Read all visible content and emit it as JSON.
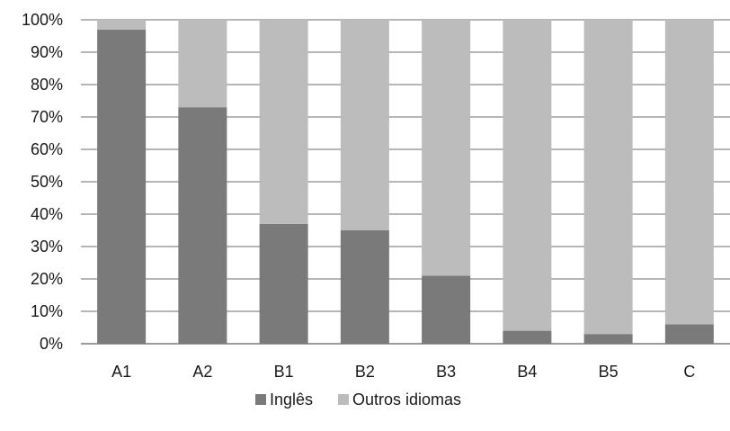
{
  "chart_data": {
    "type": "bar",
    "stacked": true,
    "categories": [
      "A1",
      "A2",
      "B1",
      "B2",
      "B3",
      "B4",
      "B5",
      "C"
    ],
    "series": [
      {
        "name": "Inglês",
        "values": [
          97,
          73,
          37,
          35,
          21,
          4,
          3,
          6
        ],
        "color": "#7a7a7a"
      },
      {
        "name": "Outros idiomas",
        "values": [
          3,
          27,
          63,
          65,
          79,
          96,
          97,
          94
        ],
        "color": "#bcbcbc"
      }
    ],
    "ylim": [
      0,
      100
    ],
    "yticks": [
      "0%",
      "10%",
      "20%",
      "30%",
      "40%",
      "50%",
      "60%",
      "70%",
      "80%",
      "90%",
      "100%"
    ],
    "grid": true,
    "legend": "bottom"
  }
}
